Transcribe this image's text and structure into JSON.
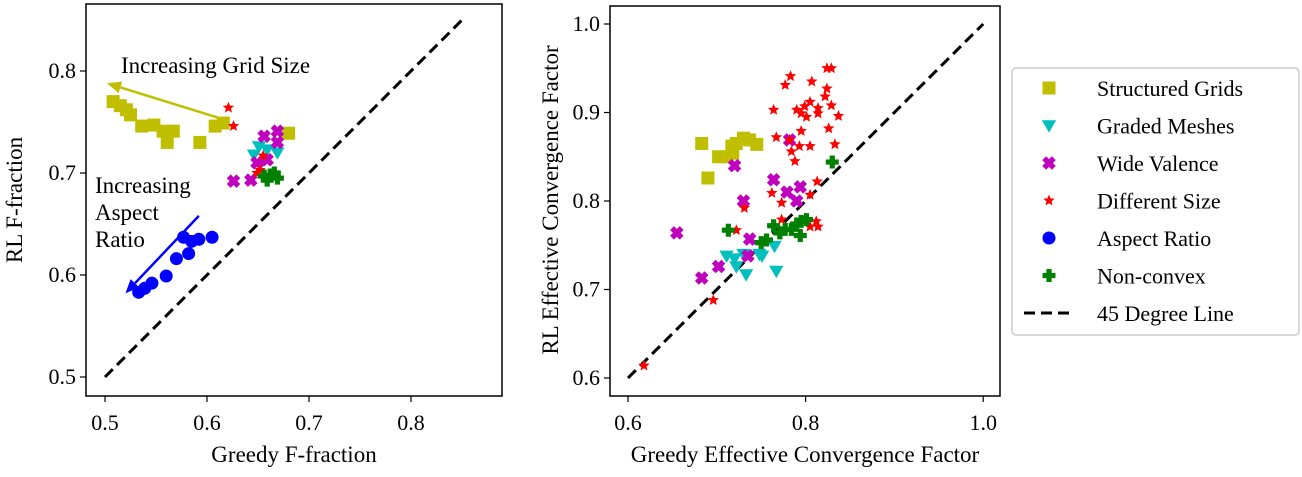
{
  "colors": {
    "Structured Grids": "#bfbf00",
    "Graded Meshes": "#00bfbf",
    "Wide Valence": "#bf00bf",
    "Different Size": "#ff0000",
    "Aspect Ratio": "#0000ff",
    "Non-convex": "#008000",
    "45 Degree Line": "#000000"
  },
  "markers": {
    "Structured Grids": "square",
    "Graded Meshes": "triangle-down",
    "Wide Valence": "filled-x",
    "Different Size": "star",
    "Aspect Ratio": "circle",
    "Non-convex": "filled-plus"
  },
  "legend": {
    "placement": "right-outside",
    "entries": [
      "Structured Grids",
      "Graded Meshes",
      "Wide Valence",
      "Different Size",
      "Aspect Ratio",
      "Non-convex",
      "45 Degree Line"
    ]
  },
  "chart_data": [
    {
      "type": "scatter",
      "xlabel": "Greedy F-fraction",
      "ylabel": "RL F-fraction",
      "xlim": [
        0.48,
        0.87
      ],
      "ylim": [
        0.48,
        0.865
      ],
      "xticks": [
        "0.5",
        "0.6",
        "0.7",
        "0.8"
      ],
      "yticks": [
        "0.5",
        "0.6",
        "0.7",
        "0.8"
      ],
      "grid": false,
      "reference_line": {
        "name": "45 Degree Line",
        "from": [
          0.5,
          0.5
        ],
        "to": [
          0.85,
          0.85
        ]
      },
      "annotations": [
        {
          "text": "Increasing Grid Size",
          "arrow_from": [
            0.618,
            0.752
          ],
          "arrow_to": [
            0.502,
            0.788
          ],
          "color": "#bfbf00"
        },
        {
          "text": [
            "Increasing",
            "Aspect",
            "Ratio"
          ],
          "arrow_from": [
            0.592,
            0.658
          ],
          "arrow_to": [
            0.52,
            0.582
          ],
          "color": "#0000ff"
        }
      ],
      "series": [
        {
          "name": "Structured Grids",
          "points": [
            [
              0.508,
              0.77
            ],
            [
              0.515,
              0.766
            ],
            [
              0.521,
              0.762
            ],
            [
              0.525,
              0.757
            ],
            [
              0.536,
              0.746
            ],
            [
              0.548,
              0.747
            ],
            [
              0.557,
              0.741
            ],
            [
              0.561,
              0.73
            ],
            [
              0.567,
              0.741
            ],
            [
              0.593,
              0.73
            ],
            [
              0.608,
              0.746
            ],
            [
              0.616,
              0.749
            ],
            [
              0.68,
              0.739
            ]
          ]
        },
        {
          "name": "Graded Meshes",
          "points": [
            [
              0.651,
              0.726
            ],
            [
              0.646,
              0.718
            ],
            [
              0.659,
              0.723
            ],
            [
              0.669,
              0.72
            ]
          ]
        },
        {
          "name": "Wide Valence",
          "points": [
            [
              0.656,
              0.736
            ],
            [
              0.669,
              0.741
            ],
            [
              0.669,
              0.73
            ],
            [
              0.626,
              0.692
            ],
            [
              0.643,
              0.693
            ],
            [
              0.649,
              0.71
            ],
            [
              0.659,
              0.713
            ]
          ]
        },
        {
          "name": "Different Size",
          "points": [
            [
              0.621,
              0.764
            ],
            [
              0.626,
              0.746
            ],
            [
              0.655,
              0.717
            ],
            [
              0.652,
              0.703
            ],
            [
              0.649,
              0.7
            ]
          ]
        },
        {
          "name": "Aspect Ratio",
          "points": [
            [
              0.533,
              0.583
            ],
            [
              0.539,
              0.587
            ],
            [
              0.546,
              0.592
            ],
            [
              0.56,
              0.599
            ],
            [
              0.57,
              0.616
            ],
            [
              0.577,
              0.637
            ],
            [
              0.582,
              0.621
            ],
            [
              0.585,
              0.633
            ],
            [
              0.592,
              0.635
            ],
            [
              0.605,
              0.637
            ]
          ]
        },
        {
          "name": "Non-convex",
          "points": [
            [
              0.659,
              0.693
            ],
            [
              0.666,
              0.7
            ],
            [
              0.669,
              0.695
            ],
            [
              0.656,
              0.697
            ],
            [
              0.662,
              0.698
            ]
          ]
        }
      ]
    },
    {
      "type": "scatter",
      "xlabel": "Greedy Effective Convergence Factor",
      "ylabel": "RL Effective Convergence Factor",
      "xlim": [
        0.58,
        1.02
      ],
      "ylim": [
        0.58,
        1.02
      ],
      "xticks": [
        "0.6",
        "0.8",
        "1.0"
      ],
      "yticks": [
        "0.6",
        "0.7",
        "0.8",
        "0.9",
        "1.0"
      ],
      "grid": false,
      "reference_line": {
        "name": "45 Degree Line",
        "from": [
          0.6,
          0.6
        ],
        "to": [
          1.0,
          1.0
        ]
      },
      "series": [
        {
          "name": "Structured Grids",
          "points": [
            [
              0.683,
              0.865
            ],
            [
              0.69,
              0.826
            ],
            [
              0.702,
              0.85
            ],
            [
              0.711,
              0.85
            ],
            [
              0.717,
              0.862
            ],
            [
              0.722,
              0.865
            ],
            [
              0.73,
              0.871
            ],
            [
              0.737,
              0.869
            ],
            [
              0.745,
              0.864
            ],
            [
              0.718,
              0.854
            ]
          ]
        },
        {
          "name": "Graded Meshes",
          "points": [
            [
              0.711,
              0.738
            ],
            [
              0.72,
              0.735
            ],
            [
              0.73,
              0.74
            ],
            [
              0.733,
              0.717
            ],
            [
              0.748,
              0.74
            ],
            [
              0.751,
              0.738
            ],
            [
              0.765,
              0.749
            ],
            [
              0.767,
              0.721
            ],
            [
              0.722,
              0.726
            ]
          ]
        },
        {
          "name": "Wide Valence",
          "points": [
            [
              0.655,
              0.764
            ],
            [
              0.683,
              0.713
            ],
            [
              0.702,
              0.726
            ],
            [
              0.72,
              0.84
            ],
            [
              0.73,
              0.8
            ],
            [
              0.737,
              0.757
            ],
            [
              0.735,
              0.738
            ],
            [
              0.764,
              0.824
            ],
            [
              0.779,
              0.81
            ],
            [
              0.79,
              0.8
            ],
            [
              0.794,
              0.816
            ],
            [
              0.782,
              0.869
            ]
          ]
        },
        {
          "name": "Different Size",
          "points": [
            [
              0.618,
              0.614
            ],
            [
              0.696,
              0.688
            ],
            [
              0.722,
              0.767
            ],
            [
              0.731,
              0.792
            ],
            [
              0.762,
              0.809
            ],
            [
              0.773,
              0.798
            ],
            [
              0.773,
              0.779
            ],
            [
              0.764,
              0.903
            ],
            [
              0.767,
              0.872
            ],
            [
              0.777,
              0.931
            ],
            [
              0.783,
              0.941
            ],
            [
              0.782,
              0.869
            ],
            [
              0.784,
              0.856
            ],
            [
              0.788,
              0.845
            ],
            [
              0.79,
              0.903
            ],
            [
              0.795,
              0.899
            ],
            [
              0.795,
              0.879
            ],
            [
              0.793,
              0.862
            ],
            [
              0.799,
              0.907
            ],
            [
              0.801,
              0.895
            ],
            [
              0.805,
              0.912
            ],
            [
              0.805,
              0.862
            ],
            [
              0.807,
              0.935
            ],
            [
              0.814,
              0.905
            ],
            [
              0.814,
              0.899
            ],
            [
              0.824,
              0.95
            ],
            [
              0.829,
              0.95
            ],
            [
              0.824,
              0.927
            ],
            [
              0.822,
              0.918
            ],
            [
              0.829,
              0.908
            ],
            [
              0.837,
              0.896
            ],
            [
              0.826,
              0.882
            ],
            [
              0.833,
              0.864
            ],
            [
              0.813,
              0.822
            ],
            [
              0.805,
              0.807
            ],
            [
              0.805,
              0.771
            ],
            [
              0.812,
              0.777
            ],
            [
              0.814,
              0.771
            ]
          ]
        },
        {
          "name": "Non-convex",
          "points": [
            [
              0.713,
              0.767
            ],
            [
              0.75,
              0.753
            ],
            [
              0.756,
              0.756
            ],
            [
              0.764,
              0.772
            ],
            [
              0.771,
              0.764
            ],
            [
              0.777,
              0.768
            ],
            [
              0.784,
              0.768
            ],
            [
              0.79,
              0.774
            ],
            [
              0.795,
              0.777
            ],
            [
              0.801,
              0.779
            ],
            [
              0.794,
              0.761
            ],
            [
              0.83,
              0.844
            ]
          ]
        }
      ]
    }
  ]
}
